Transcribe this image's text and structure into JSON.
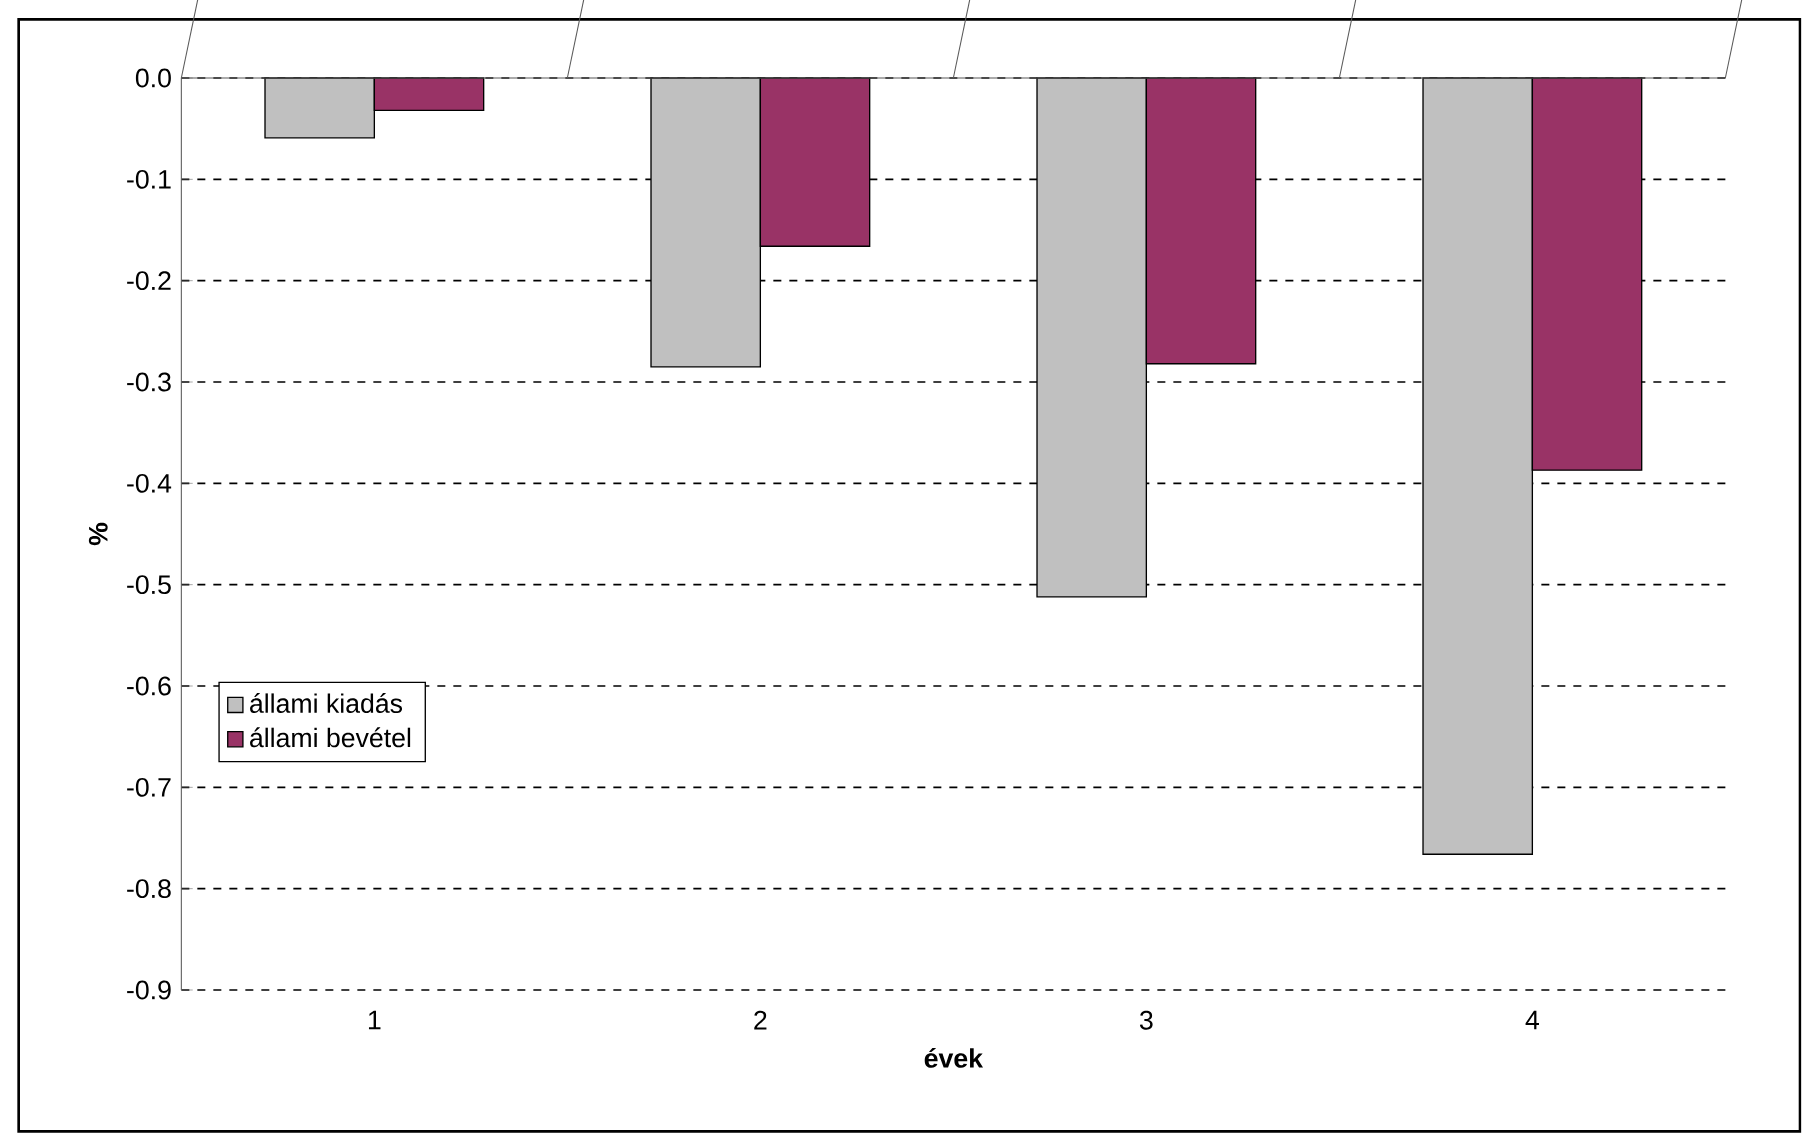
{
  "chart_data": {
    "type": "bar",
    "xlabel": "évek",
    "ylabel": "%",
    "categories": [
      "1",
      "2",
      "3",
      "4"
    ],
    "series": [
      {
        "name": "állami kiadás",
        "color": "#c0c0c0",
        "values": [
          -0.059,
          -0.285,
          -0.512,
          -0.766
        ]
      },
      {
        "name": "állami bevétel",
        "color": "#993366",
        "values": [
          -0.032,
          -0.166,
          -0.282,
          -0.387
        ]
      }
    ],
    "ylim": [
      -0.9,
      0
    ],
    "yticks": [
      {
        "value": 0,
        "label": "0.0"
      },
      {
        "value": -0.1,
        "label": "-0.1"
      },
      {
        "value": -0.2,
        "label": "-0.2"
      },
      {
        "value": -0.3,
        "label": "-0.3"
      },
      {
        "value": -0.4,
        "label": "-0.4"
      },
      {
        "value": -0.5,
        "label": "-0.5"
      },
      {
        "value": -0.6,
        "label": "-0.6"
      },
      {
        "value": -0.7,
        "label": "-0.7"
      },
      {
        "value": -0.8,
        "label": "-0.8"
      },
      {
        "value": -0.9,
        "label": "-0.9"
      }
    ],
    "grid": "y",
    "legend": "left"
  }
}
